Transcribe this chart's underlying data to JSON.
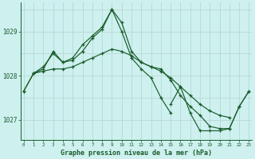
{
  "title": "Graphe pression niveau de la mer (hPa)",
  "background_color": "#cef0ef",
  "grid_color_v": "#a8d8d0",
  "grid_color_h": "#b8d4cc",
  "line_color": "#1a5c2a",
  "ylim": [
    1026.55,
    1029.65
  ],
  "xlim": [
    -0.3,
    23.3
  ],
  "yticks": [
    1027,
    1028,
    1029
  ],
  "xticks": [
    0,
    1,
    2,
    3,
    4,
    5,
    6,
    7,
    8,
    9,
    10,
    11,
    12,
    13,
    14,
    15,
    16,
    17,
    18,
    19,
    20,
    21,
    22,
    23
  ],
  "series1": [
    1027.65,
    1028.05,
    1028.15,
    1028.55,
    1028.3,
    1028.35,
    1028.55,
    1028.85,
    1029.05,
    1029.5,
    1029.0,
    1028.4,
    1028.15,
    1027.95,
    1027.5,
    1027.15,
    null,
    null,
    null,
    null,
    null,
    null,
    null,
    null
  ],
  "series2": [
    null,
    1028.05,
    1028.2,
    1028.5,
    1028.3,
    1028.4,
    1028.7,
    1028.9,
    1029.1,
    1029.5,
    1029.2,
    1028.55,
    1028.3,
    1028.2,
    1028.15,
    1027.9,
    1027.55,
    1027.3,
    1027.1,
    1026.85,
    1026.8,
    1026.8,
    1027.3,
    1027.65
  ],
  "series3": [
    1027.65,
    1028.05,
    1028.1,
    1028.15,
    1028.15,
    1028.2,
    1028.3,
    1028.4,
    1028.5,
    1028.6,
    1028.55,
    1028.45,
    1028.3,
    1028.2,
    1028.1,
    1027.95,
    1027.75,
    1027.55,
    1027.35,
    1027.2,
    1027.1,
    1027.05,
    null,
    null
  ],
  "series4": [
    null,
    null,
    null,
    null,
    null,
    null,
    null,
    null,
    null,
    null,
    null,
    null,
    null,
    null,
    null,
    1027.35,
    1027.75,
    1027.15,
    1026.75,
    1026.75,
    1026.75,
    1026.8,
    1027.3,
    1027.65
  ]
}
